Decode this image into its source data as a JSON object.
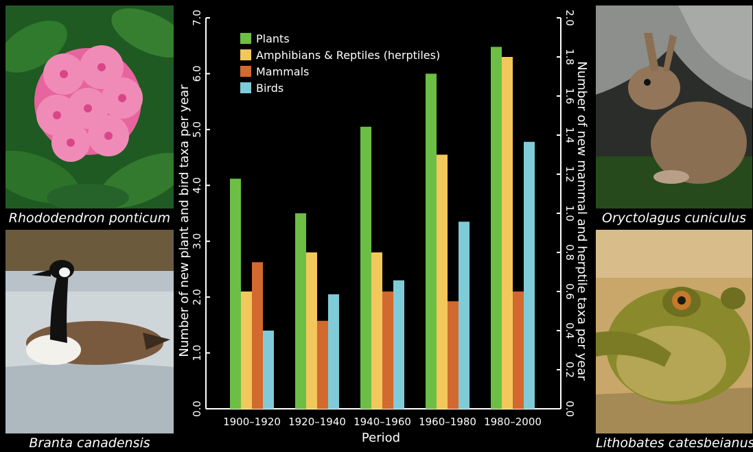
{
  "photos": [
    {
      "caption": "Rhododendron ponticum",
      "icon": "rhododendron-flower-photo"
    },
    {
      "caption": "Branta canadensis",
      "icon": "canada-goose-photo"
    },
    {
      "caption": "Oryctolagus cuniculus",
      "icon": "rabbit-photo"
    },
    {
      "caption": "Lithobates catesbeianus",
      "icon": "bullfrog-photo"
    }
  ],
  "chart_data": {
    "type": "bar",
    "categories": [
      "1900–1920",
      "1920–1940",
      "1940–1960",
      "1960–1980",
      "1980–2000"
    ],
    "xlabel": "Period",
    "ylabel_left": "Number of new plant and bird taxa per year",
    "ylabel_right": "Number of new mammal and herptile taxa per year",
    "ylim_left": [
      0,
      7
    ],
    "ylim_right": [
      0,
      2
    ],
    "left_ticks": [
      "0.0",
      "1.0",
      "2.0",
      "3.0",
      "4.0",
      "5.0",
      "6.0",
      "7.0"
    ],
    "right_ticks": [
      "0.0",
      "0.2",
      "0.4",
      "0.6",
      "0.8",
      "1.0",
      "1.2",
      "1.4",
      "1.6",
      "1.8",
      "2.0"
    ],
    "legend_position": "top-left",
    "grid": false,
    "series": [
      {
        "name": "Plants",
        "axis": "left",
        "color": "#6dbe45",
        "values": [
          4.12,
          3.5,
          5.05,
          6.0,
          6.48
        ]
      },
      {
        "name": "Amphibians & Reptiles (herptiles)",
        "axis": "right",
        "color": "#f2c75c",
        "values": [
          0.6,
          0.8,
          0.8,
          1.3,
          1.8
        ]
      },
      {
        "name": "Mammals",
        "axis": "right",
        "color": "#d2692f",
        "values": [
          0.75,
          0.45,
          0.6,
          0.55,
          0.6
        ]
      },
      {
        "name": "Birds",
        "axis": "left",
        "color": "#7fccd8",
        "values": [
          1.4,
          2.05,
          2.3,
          3.35,
          4.78
        ]
      }
    ]
  }
}
